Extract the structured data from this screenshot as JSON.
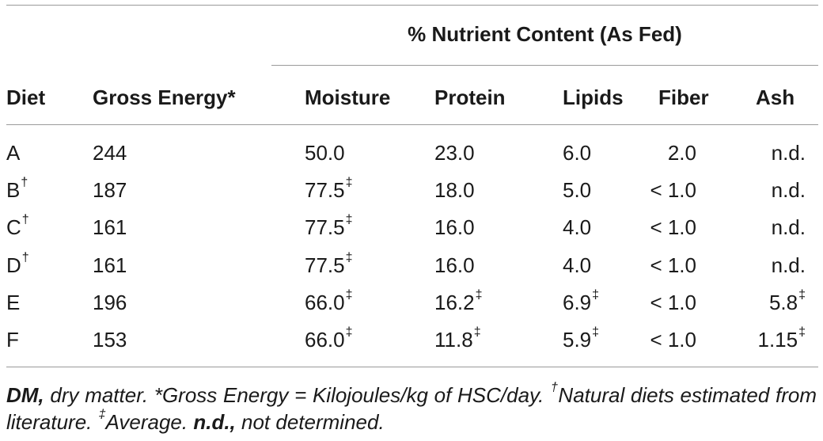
{
  "table": {
    "group_header": "% Nutrient Content (As Fed)",
    "headers": [
      "Diet",
      "Gross Energy*",
      "Moisture",
      "Protein",
      "Lipids",
      "Fiber",
      "Ash"
    ],
    "rows": [
      [
        {
          "v": "A",
          "s": ""
        },
        {
          "v": "244",
          "s": ""
        },
        {
          "v": "50.0",
          "s": ""
        },
        {
          "v": "23.0",
          "s": ""
        },
        {
          "v": "6.0",
          "s": ""
        },
        {
          "v": "2.0",
          "s": ""
        },
        {
          "v": "n.d.",
          "s": ""
        }
      ],
      [
        {
          "v": "B",
          "s": "†"
        },
        {
          "v": "187",
          "s": ""
        },
        {
          "v": "77.5",
          "s": "‡"
        },
        {
          "v": "18.0",
          "s": ""
        },
        {
          "v": "5.0",
          "s": ""
        },
        {
          "v": "< 1.0",
          "s": ""
        },
        {
          "v": "n.d.",
          "s": ""
        }
      ],
      [
        {
          "v": "C",
          "s": "†"
        },
        {
          "v": "161",
          "s": ""
        },
        {
          "v": "77.5",
          "s": "‡"
        },
        {
          "v": "16.0",
          "s": ""
        },
        {
          "v": "4.0",
          "s": ""
        },
        {
          "v": "< 1.0",
          "s": ""
        },
        {
          "v": "n.d.",
          "s": ""
        }
      ],
      [
        {
          "v": "D",
          "s": "†"
        },
        {
          "v": "161",
          "s": ""
        },
        {
          "v": "77.5",
          "s": "‡"
        },
        {
          "v": "16.0",
          "s": ""
        },
        {
          "v": "4.0",
          "s": ""
        },
        {
          "v": "< 1.0",
          "s": ""
        },
        {
          "v": "n.d.",
          "s": ""
        }
      ],
      [
        {
          "v": "E",
          "s": ""
        },
        {
          "v": "196",
          "s": ""
        },
        {
          "v": "66.0",
          "s": "‡"
        },
        {
          "v": "16.2",
          "s": "‡"
        },
        {
          "v": "6.9",
          "s": "‡"
        },
        {
          "v": "< 1.0",
          "s": ""
        },
        {
          "v": "5.8",
          "s": "‡"
        }
      ],
      [
        {
          "v": "F",
          "s": ""
        },
        {
          "v": "153",
          "s": ""
        },
        {
          "v": "66.0",
          "s": "‡"
        },
        {
          "v": "11.8",
          "s": "‡"
        },
        {
          "v": "5.9",
          "s": "‡"
        },
        {
          "v": "< 1.0",
          "s": ""
        },
        {
          "v": "1.15",
          "s": "‡"
        }
      ]
    ]
  },
  "footnote": {
    "dm_abbr": "DM,",
    "dm_text": " dry matter. *Gross Energy = Kilojoules/kg of HSC/day. ",
    "dagger": "†",
    "dagger_text": "Natural diets estimated from literature. ",
    "ddagger": "‡",
    "ddagger_text": "Average. ",
    "nd_abbr": "n.d.,",
    "nd_text": " not determined."
  }
}
